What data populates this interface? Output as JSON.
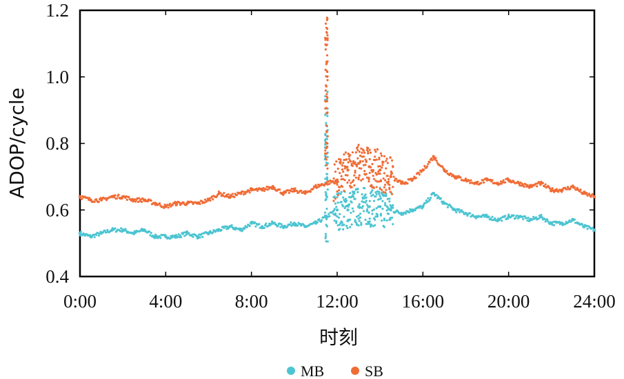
{
  "chart_data": {
    "type": "scatter",
    "title": "",
    "xlabel": "时刻",
    "ylabel": "ADOP/cycle",
    "xlim": [
      0,
      24
    ],
    "ylim": [
      0.4,
      1.2
    ],
    "x_ticks": [
      0,
      4,
      8,
      12,
      16,
      20,
      24
    ],
    "x_tick_labels": [
      "0:00",
      "4:00",
      "8:00",
      "12:00",
      "16:00",
      "20:00",
      "24:00"
    ],
    "y_ticks": [
      0.4,
      0.6,
      0.8,
      1.0,
      1.2
    ],
    "y_tick_labels": [
      "0.4",
      "0.6",
      "0.8",
      "1.0",
      "1.2"
    ],
    "grid": false,
    "legend_position": "bottom-center",
    "series": [
      {
        "name": "MB",
        "color": "#4cc4d1",
        "x": [
          0.0,
          0.5,
          1.0,
          1.5,
          2.0,
          2.5,
          3.0,
          3.5,
          4.0,
          4.5,
          5.0,
          5.5,
          6.0,
          6.5,
          7.0,
          7.5,
          8.0,
          8.5,
          9.0,
          9.5,
          10.0,
          10.5,
          11.0,
          11.5,
          12.0,
          12.5,
          13.0,
          13.5,
          14.0,
          14.5,
          15.0,
          15.5,
          16.0,
          16.5,
          17.0,
          17.5,
          18.0,
          18.5,
          19.0,
          19.5,
          20.0,
          20.5,
          21.0,
          21.5,
          22.0,
          22.5,
          23.0,
          23.5,
          24.0
        ],
        "y": [
          0.53,
          0.52,
          0.53,
          0.54,
          0.54,
          0.53,
          0.54,
          0.52,
          0.52,
          0.52,
          0.53,
          0.52,
          0.53,
          0.54,
          0.55,
          0.54,
          0.56,
          0.55,
          0.56,
          0.55,
          0.56,
          0.55,
          0.56,
          0.58,
          0.6,
          0.6,
          0.61,
          0.61,
          0.61,
          0.6,
          0.59,
          0.6,
          0.61,
          0.65,
          0.62,
          0.6,
          0.59,
          0.58,
          0.58,
          0.57,
          0.58,
          0.58,
          0.57,
          0.58,
          0.56,
          0.56,
          0.57,
          0.55,
          0.54
        ]
      },
      {
        "name": "SB",
        "color": "#f06c36",
        "x": [
          0.0,
          0.5,
          1.0,
          1.5,
          2.0,
          2.5,
          3.0,
          3.5,
          4.0,
          4.5,
          5.0,
          5.5,
          6.0,
          6.5,
          7.0,
          7.5,
          8.0,
          8.5,
          9.0,
          9.5,
          10.0,
          10.5,
          11.0,
          11.5,
          12.0,
          12.5,
          13.0,
          13.5,
          14.0,
          14.5,
          15.0,
          15.5,
          16.0,
          16.5,
          17.0,
          17.5,
          18.0,
          18.5,
          19.0,
          19.5,
          20.0,
          20.5,
          21.0,
          21.5,
          22.0,
          22.5,
          23.0,
          23.5,
          24.0
        ],
        "y": [
          0.64,
          0.63,
          0.63,
          0.64,
          0.64,
          0.63,
          0.63,
          0.62,
          0.61,
          0.62,
          0.62,
          0.62,
          0.63,
          0.65,
          0.64,
          0.65,
          0.66,
          0.66,
          0.67,
          0.65,
          0.66,
          0.65,
          0.67,
          0.68,
          0.69,
          0.72,
          0.74,
          0.73,
          0.72,
          0.7,
          0.68,
          0.69,
          0.72,
          0.76,
          0.72,
          0.7,
          0.69,
          0.68,
          0.69,
          0.68,
          0.69,
          0.68,
          0.67,
          0.68,
          0.66,
          0.66,
          0.67,
          0.65,
          0.64
        ]
      }
    ],
    "annotations": [
      {
        "series": "SB",
        "x": 11.5,
        "y_range": [
          0.72,
          1.18
        ],
        "note": "spike"
      },
      {
        "series": "MB",
        "x": 11.5,
        "y_range": [
          0.5,
          0.97
        ],
        "note": "spike"
      }
    ]
  }
}
